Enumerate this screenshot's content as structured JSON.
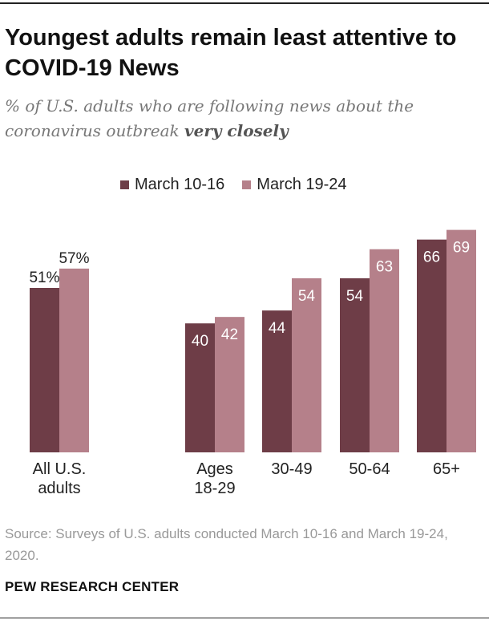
{
  "header": {
    "title": "Youngest adults remain least attentive to COVID-19 News",
    "subtitle_prefix": "% of U.S. adults who are following news about the coronavirus outbreak",
    "subtitle_emphasis": "very closely"
  },
  "chart_data": {
    "type": "bar",
    "title": "Youngest adults remain least attentive to COVID-19 News",
    "ylabel": "% of U.S. adults following coronavirus news very closely",
    "xlabel": "",
    "ylim": [
      0,
      100
    ],
    "grid": false,
    "legend_position": "top-center",
    "categories": [
      "All U.S. adults",
      "Ages 18-29",
      "30-49",
      "50-64",
      "65+"
    ],
    "series": [
      {
        "name": "March 10-16",
        "color": "#6e3d47",
        "values": [
          51,
          40,
          44,
          54,
          66
        ],
        "labels": [
          "51%",
          "40",
          "44",
          "54",
          "66"
        ]
      },
      {
        "name": "March 19-24",
        "color": "#b5808a",
        "values": [
          57,
          42,
          54,
          63,
          69
        ],
        "labels": [
          "57%",
          "42",
          "54",
          "63",
          "69"
        ]
      }
    ]
  },
  "axis": {
    "category_labels": [
      [
        "All U.S.",
        "adults"
      ],
      [
        "Ages",
        "18-29"
      ],
      [
        "30-49"
      ],
      [
        "50-64"
      ],
      [
        "65+"
      ]
    ]
  },
  "footer": {
    "source": "Source: Surveys of U.S. adults conducted March 10-16 and March 19-24, 2020.",
    "brand": "PEW RESEARCH CENTER"
  }
}
